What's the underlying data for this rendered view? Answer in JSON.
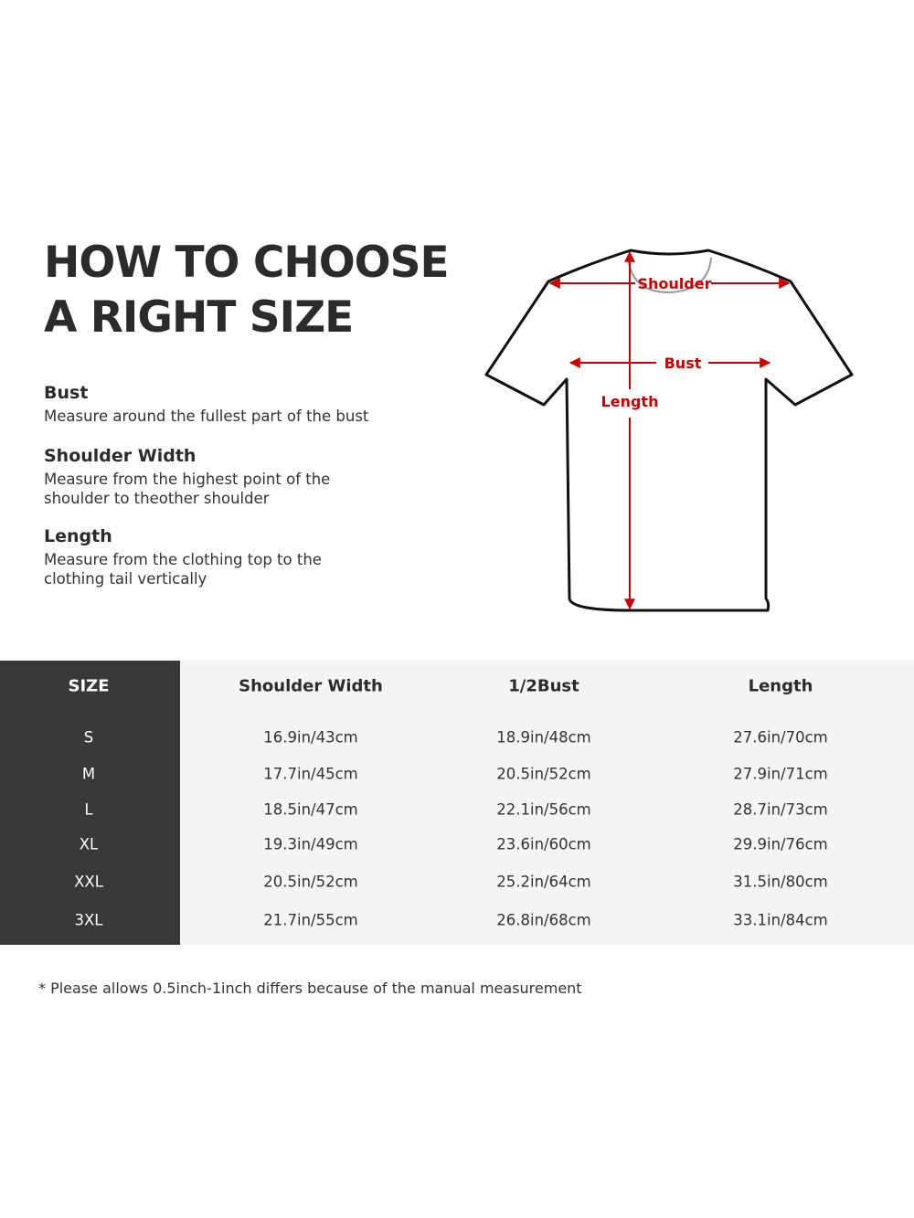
{
  "title": [
    "HOW TO CHOOSE",
    "A RIGHT SIZE"
  ],
  "sections": [
    {
      "heading": "Bust",
      "text": [
        "Measure around the fullest part of the bust"
      ]
    },
    {
      "heading": "Shoulder Width",
      "text": [
        "Measure from the highest point of the",
        "shoulder to theother shoulder"
      ]
    },
    {
      "heading": "Length",
      "text": [
        "Measure from the clothing top to the",
        "clothing tail vertically"
      ]
    }
  ],
  "diagram": {
    "shoulder": "Shoulder",
    "bust": "Bust",
    "length": "Length",
    "arrow_color": "#cc0000"
  },
  "table": {
    "headers": [
      "SIZE",
      "Shoulder Width",
      "1/2Bust",
      "Length"
    ],
    "rows": [
      [
        "S",
        "16.9in/43cm",
        "18.9in/48cm",
        "27.6in/70cm"
      ],
      [
        "M",
        "17.7in/45cm",
        "20.5in/52cm",
        "27.9in/71cm"
      ],
      [
        "L",
        "18.5in/47cm",
        "22.1in/56cm",
        "28.7in/73cm"
      ],
      [
        "XL",
        "19.3in/49cm",
        "23.6in/60cm",
        "29.9in/76cm"
      ],
      [
        "XXL",
        "20.5in/52cm",
        "25.2in/64cm",
        "31.5in/80cm"
      ],
      [
        "3XL",
        "21.7in/55cm",
        "26.8in/68cm",
        "33.1in/84cm"
      ]
    ]
  },
  "note": "* Please allows 0.5inch-1inch differs because of the  manual measurement"
}
